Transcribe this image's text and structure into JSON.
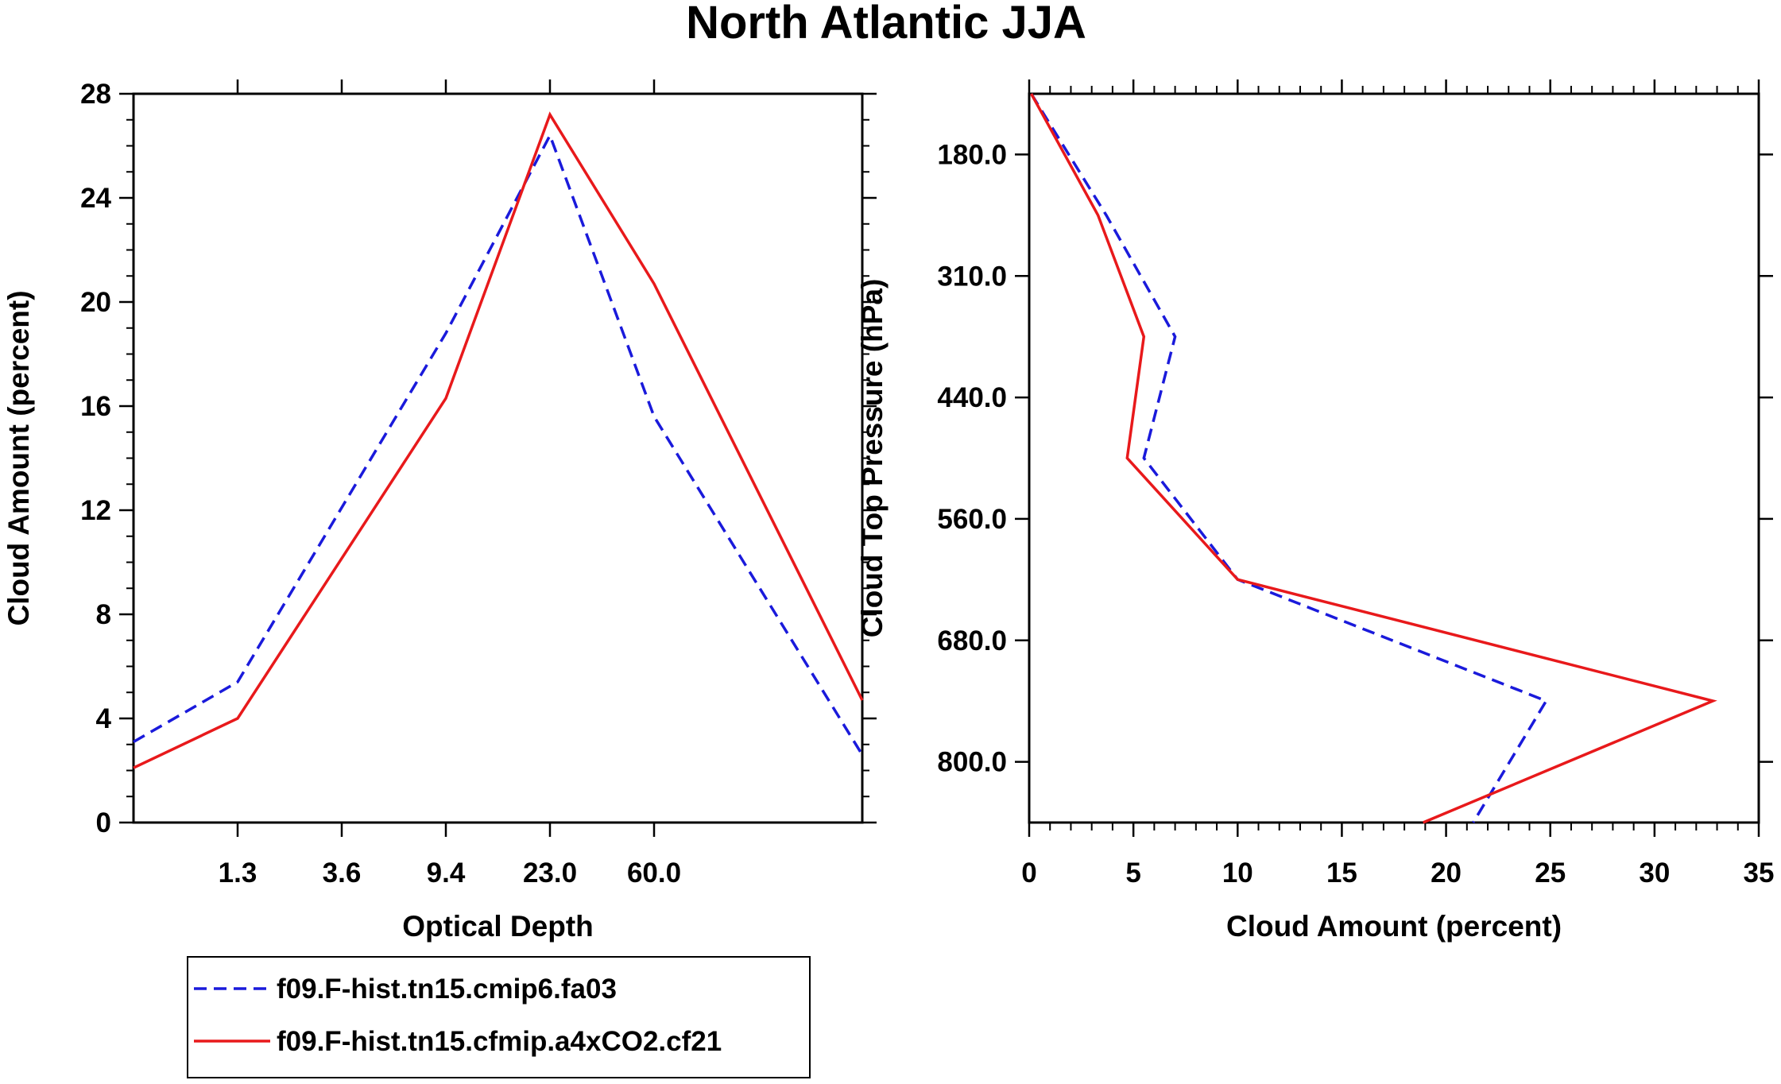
{
  "title": "North Atlantic JJA",
  "colors": {
    "series_1": "#1a1adb",
    "series_2": "#e8191b",
    "axis": "#000000"
  },
  "chart_data": [
    {
      "id": "left",
      "type": "line",
      "xlabel": "Optical Depth",
      "ylabel": "Cloud Amount (percent)",
      "x_tick_labels": [
        "1.3",
        "3.6",
        "9.4",
        "23.0",
        "60.0"
      ],
      "ylim": [
        0,
        28
      ],
      "y_ticks": [
        0,
        4,
        8,
        12,
        16,
        20,
        24,
        28
      ],
      "x_bins": [
        0,
        1,
        2,
        3,
        4,
        5,
        6,
        7
      ],
      "series": [
        {
          "name": "f09.F-hist.tn15.cmip6.fa03",
          "style": "dashed",
          "color": "#1a1adb",
          "values": [
            3.1,
            5.4,
            18.8,
            26.4,
            15.6,
            2.6
          ]
        },
        {
          "name": "f09.F-hist.tn15.cfmip.a4xCO2.cf21",
          "style": "solid",
          "color": "#e8191b",
          "values": [
            2.1,
            4.0,
            16.3,
            27.2,
            20.7,
            4.7
          ]
        }
      ]
    },
    {
      "id": "right",
      "type": "line",
      "xlabel": "Cloud Amount (percent)",
      "ylabel": "Cloud Top Pressure (hPa)",
      "xlim": [
        0,
        35
      ],
      "x_ticks": [
        0,
        5,
        10,
        15,
        20,
        25,
        30,
        35
      ],
      "y_tick_labels": [
        "180.0",
        "310.0",
        "440.0",
        "560.0",
        "680.0",
        "800.0"
      ],
      "y_bins": [
        0,
        1,
        2,
        3,
        4,
        5,
        6
      ],
      "series": [
        {
          "name": "f09.F-hist.tn15.cmip6.fa03",
          "style": "dashed",
          "color": "#1a1adb",
          "values": [
            0.1,
            3.7,
            7.0,
            5.5,
            10.0,
            24.8,
            21.3
          ]
        },
        {
          "name": "f09.F-hist.tn15.cfmip.a4xCO2.cf21",
          "style": "solid",
          "color": "#e8191b",
          "values": [
            0.1,
            3.3,
            5.5,
            4.7,
            10.0,
            32.8,
            18.9
          ]
        }
      ]
    }
  ],
  "legend": {
    "entries": [
      "f09.F-hist.tn15.cmip6.fa03",
      "f09.F-hist.tn15.cfmip.a4xCO2.cf21"
    ]
  }
}
